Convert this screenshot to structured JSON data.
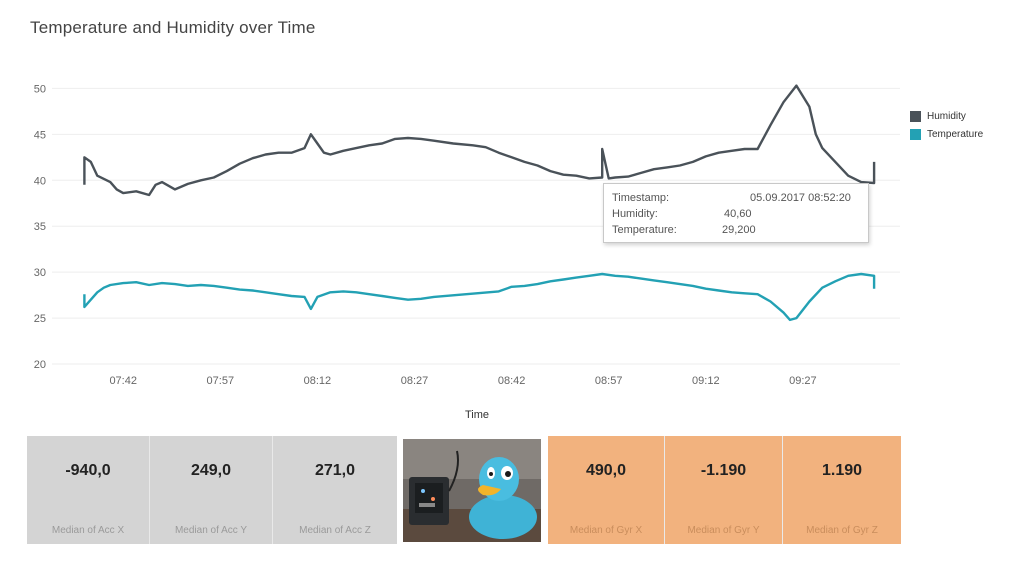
{
  "chart_data": {
    "type": "line",
    "title": "Temperature and Humidity over Time",
    "xlabel": "Time",
    "ylabel": "",
    "ylim": [
      20,
      52
    ],
    "yticks": [
      20,
      25,
      30,
      35,
      40,
      45,
      50
    ],
    "xlim_minutes": [
      "07:31",
      "09:42"
    ],
    "xticks": [
      "07:42",
      "07:57",
      "08:12",
      "08:27",
      "08:42",
      "08:57",
      "09:12",
      "09:27"
    ],
    "grid": true,
    "legend_position": "right",
    "series": [
      {
        "name": "Humidity",
        "color": "#4a5259",
        "x": [
          "07:36",
          "07:36",
          "07:37",
          "07:38",
          "07:40",
          "07:41",
          "07:42",
          "07:44",
          "07:46",
          "07:47",
          "07:48",
          "07:50",
          "07:52",
          "07:54",
          "07:56",
          "07:58",
          "08:00",
          "08:02",
          "08:04",
          "08:06",
          "08:08",
          "08:10",
          "08:11",
          "08:12",
          "08:13",
          "08:14",
          "08:16",
          "08:18",
          "08:20",
          "08:22",
          "08:24",
          "08:26",
          "08:28",
          "08:30",
          "08:33",
          "08:36",
          "08:38",
          "08:40",
          "08:42",
          "08:44",
          "08:46",
          "08:48",
          "08:50",
          "08:52",
          "08:54",
          "08:56",
          "08:56",
          "08:57",
          "08:58",
          "09:00",
          "09:02",
          "09:04",
          "09:06",
          "09:08",
          "09:10",
          "09:12",
          "09:14",
          "09:16",
          "09:18",
          "09:20",
          "09:22",
          "09:24",
          "09:26",
          "09:28",
          "09:29",
          "09:30",
          "09:32",
          "09:34",
          "09:36",
          "09:38",
          "09:38"
        ],
        "y": [
          39.5,
          42.5,
          42.0,
          40.5,
          39.8,
          39.0,
          38.6,
          38.8,
          38.4,
          39.5,
          39.8,
          39.0,
          39.6,
          40.0,
          40.3,
          41.0,
          41.8,
          42.4,
          42.8,
          43.0,
          43.0,
          43.5,
          45.0,
          44.0,
          43.0,
          42.8,
          43.2,
          43.5,
          43.8,
          44.0,
          44.5,
          44.6,
          44.5,
          44.3,
          44.0,
          43.8,
          43.6,
          43.0,
          42.5,
          42.0,
          41.6,
          41.0,
          40.6,
          40.5,
          40.2,
          40.3,
          43.4,
          40.2,
          40.3,
          40.4,
          40.8,
          41.2,
          41.4,
          41.6,
          42.0,
          42.6,
          43.0,
          43.2,
          43.4,
          43.4,
          46.0,
          48.5,
          50.3,
          48.0,
          45.0,
          43.5,
          42.0,
          40.5,
          39.8,
          39.7,
          42.0
        ]
      },
      {
        "name": "Temperature",
        "color": "#23a1b4",
        "x": [
          "07:36",
          "07:36",
          "07:37",
          "07:38",
          "07:39",
          "07:40",
          "07:42",
          "07:44",
          "07:46",
          "07:48",
          "07:50",
          "07:52",
          "07:54",
          "07:56",
          "07:58",
          "08:00",
          "08:02",
          "08:04",
          "08:06",
          "08:08",
          "08:10",
          "08:11",
          "08:12",
          "08:14",
          "08:16",
          "08:18",
          "08:20",
          "08:22",
          "08:24",
          "08:26",
          "08:28",
          "08:30",
          "08:35",
          "08:40",
          "08:42",
          "08:44",
          "08:46",
          "08:48",
          "08:50",
          "08:52",
          "08:54",
          "08:56",
          "08:58",
          "09:00",
          "09:02",
          "09:04",
          "09:06",
          "09:08",
          "09:10",
          "09:12",
          "09:14",
          "09:16",
          "09:18",
          "09:20",
          "09:22",
          "09:24",
          "09:25",
          "09:26",
          "09:28",
          "09:30",
          "09:32",
          "09:34",
          "09:36",
          "09:38",
          "09:38"
        ],
        "y": [
          27.6,
          26.2,
          27.0,
          27.8,
          28.3,
          28.6,
          28.8,
          28.9,
          28.6,
          28.8,
          28.7,
          28.5,
          28.6,
          28.5,
          28.3,
          28.1,
          28.0,
          27.8,
          27.6,
          27.4,
          27.3,
          26.0,
          27.3,
          27.8,
          27.9,
          27.8,
          27.6,
          27.4,
          27.2,
          27.0,
          27.1,
          27.3,
          27.6,
          27.9,
          28.4,
          28.5,
          28.7,
          29.0,
          29.2,
          29.4,
          29.6,
          29.8,
          29.6,
          29.5,
          29.3,
          29.1,
          28.9,
          28.7,
          28.5,
          28.2,
          28.0,
          27.8,
          27.7,
          27.6,
          26.8,
          25.6,
          24.8,
          25.0,
          26.8,
          28.3,
          29.0,
          29.6,
          29.8,
          29.6,
          28.2
        ]
      }
    ]
  },
  "legend": [
    {
      "label": "Humidity",
      "color": "#4a5259"
    },
    {
      "label": "Temperature",
      "color": "#23a1b4"
    }
  ],
  "tooltip": {
    "rows": [
      {
        "key": "Timestamp:",
        "value": "05.09.2017 08:52:20"
      },
      {
        "key": "Humidity:",
        "value": "40,60"
      },
      {
        "key": "Temperature:",
        "value": "29,200"
      }
    ]
  },
  "accelerometer": [
    {
      "value": "-940,0",
      "label": "Median of Acc X"
    },
    {
      "value": "249,0",
      "label": "Median of Acc Y"
    },
    {
      "value": "271,0",
      "label": "Median of Acc Z"
    }
  ],
  "gyroscope": [
    {
      "value": "490,0",
      "label": "Median of Gyr X"
    },
    {
      "value": "-1.190",
      "label": "Median of Gyr Y"
    },
    {
      "value": "1.190",
      "label": "Median of Gyr Z"
    }
  ]
}
